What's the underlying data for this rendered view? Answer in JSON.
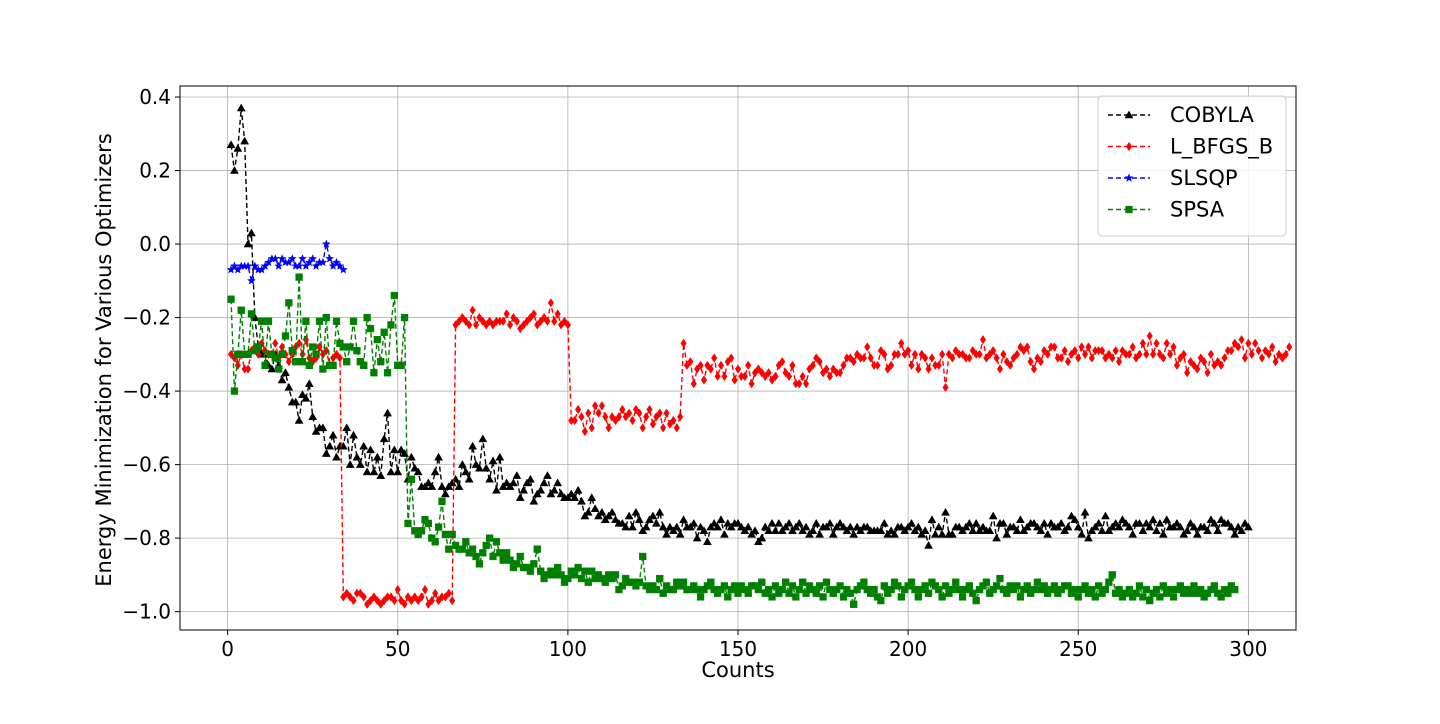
{
  "chart_data": {
    "type": "line",
    "title": "",
    "xlabel": "Counts",
    "ylabel": "Energy Minimization for Various Optimizers",
    "xlim": [
      -14,
      314
    ],
    "ylim": [
      -1.05,
      0.43
    ],
    "xticks": [
      0,
      50,
      100,
      150,
      200,
      250,
      300
    ],
    "yticks": [
      0.4,
      0.2,
      0.0,
      -0.2,
      -0.4,
      -0.6,
      -0.8,
      -1.0
    ],
    "xtick_labels": [
      "0",
      "50",
      "100",
      "150",
      "200",
      "250",
      "300"
    ],
    "ytick_labels": [
      "0.4",
      "0.2",
      "0.0",
      "−0.2",
      "−0.4",
      "−0.6",
      "−0.8",
      "−1.0"
    ],
    "grid": true,
    "legend_position": "top-right",
    "series": [
      {
        "name": "COBYLA",
        "color": "#000000",
        "marker": "triangle",
        "line_style": "dashed",
        "x_start": 1,
        "y": [
          0.27,
          0.2,
          0.26,
          0.37,
          0.28,
          0.0,
          0.03,
          -0.2,
          -0.28,
          -0.3,
          -0.3,
          -0.33,
          -0.34,
          -0.3,
          -0.33,
          -0.37,
          -0.35,
          -0.39,
          -0.43,
          -0.43,
          -0.48,
          -0.41,
          -0.42,
          -0.38,
          -0.47,
          -0.51,
          -0.5,
          -0.5,
          -0.57,
          -0.55,
          -0.52,
          -0.58,
          -0.55,
          -0.55,
          -0.5,
          -0.6,
          -0.52,
          -0.58,
          -0.6,
          -0.55,
          -0.62,
          -0.56,
          -0.62,
          -0.58,
          -0.63,
          -0.53,
          -0.46,
          -0.62,
          -0.56,
          -0.62,
          -0.56,
          -0.57,
          -0.64,
          -0.58,
          -0.61,
          -0.62,
          -0.66,
          -0.66,
          -0.65,
          -0.66,
          -0.62,
          -0.58,
          -0.66,
          -0.68,
          -0.66,
          -0.65,
          -0.64,
          -0.66,
          -0.6,
          -0.62,
          -0.64,
          -0.55,
          -0.6,
          -0.61,
          -0.53,
          -0.61,
          -0.64,
          -0.59,
          -0.67,
          -0.58,
          -0.66,
          -0.65,
          -0.66,
          -0.65,
          -0.63,
          -0.69,
          -0.67,
          -0.65,
          -0.64,
          -0.7,
          -0.68,
          -0.67,
          -0.65,
          -0.63,
          -0.68,
          -0.67,
          -0.65,
          -0.68,
          -0.69,
          -0.69,
          -0.68,
          -0.69,
          -0.67,
          -0.7,
          -0.74,
          -0.73,
          -0.69,
          -0.72,
          -0.74,
          -0.73,
          -0.75,
          -0.74,
          -0.73,
          -0.75,
          -0.76,
          -0.76,
          -0.77,
          -0.74,
          -0.77,
          -0.73,
          -0.75,
          -0.78,
          -0.77,
          -0.75,
          -0.74,
          -0.76,
          -0.73,
          -0.77,
          -0.79,
          -0.77,
          -0.78,
          -0.77,
          -0.79,
          -0.75,
          -0.77,
          -0.77,
          -0.76,
          -0.8,
          -0.77,
          -0.78,
          -0.81,
          -0.77,
          -0.76,
          -0.77,
          -0.75,
          -0.79,
          -0.76,
          -0.77,
          -0.76,
          -0.76,
          -0.77,
          -0.78,
          -0.77,
          -0.79,
          -0.78,
          -0.81,
          -0.8,
          -0.77,
          -0.78,
          -0.76,
          -0.78,
          -0.76,
          -0.78,
          -0.77,
          -0.76,
          -0.78,
          -0.77,
          -0.76,
          -0.78,
          -0.77,
          -0.79,
          -0.78,
          -0.76,
          -0.79,
          -0.77,
          -0.77,
          -0.76,
          -0.79,
          -0.77,
          -0.76,
          -0.77,
          -0.78,
          -0.77,
          -0.79,
          -0.77,
          -0.78,
          -0.77,
          -0.77,
          -0.78,
          -0.78,
          -0.78,
          -0.78,
          -0.76,
          -0.79,
          -0.78,
          -0.79,
          -0.77,
          -0.77,
          -0.78,
          -0.77,
          -0.76,
          -0.78,
          -0.77,
          -0.79,
          -0.78,
          -0.82,
          -0.75,
          -0.79,
          -0.77,
          -0.79,
          -0.73,
          -0.79,
          -0.79,
          -0.77,
          -0.77,
          -0.78,
          -0.77,
          -0.76,
          -0.78,
          -0.76,
          -0.78,
          -0.77,
          -0.78,
          -0.78,
          -0.74,
          -0.8,
          -0.76,
          -0.76,
          -0.79,
          -0.77,
          -0.77,
          -0.78,
          -0.75,
          -0.78,
          -0.77,
          -0.76,
          -0.76,
          -0.77,
          -0.78,
          -0.76,
          -0.79,
          -0.76,
          -0.77,
          -0.77,
          -0.76,
          -0.78,
          -0.77,
          -0.74,
          -0.75,
          -0.77,
          -0.79,
          -0.73,
          -0.8,
          -0.78,
          -0.77,
          -0.76,
          -0.78,
          -0.74,
          -0.78,
          -0.77,
          -0.76,
          -0.77,
          -0.75,
          -0.76,
          -0.77,
          -0.79,
          -0.76,
          -0.76,
          -0.78,
          -0.76,
          -0.77,
          -0.75,
          -0.78,
          -0.76,
          -0.79,
          -0.75,
          -0.77,
          -0.77,
          -0.76,
          -0.77,
          -0.79,
          -0.78,
          -0.76,
          -0.77,
          -0.79,
          -0.77,
          -0.77,
          -0.78,
          -0.75,
          -0.76,
          -0.78,
          -0.75,
          -0.76,
          -0.76,
          -0.77,
          -0.79,
          -0.77,
          -0.78,
          -0.76,
          -0.77
        ]
      },
      {
        "name": "L_BFGS_B",
        "color": "#ff0000",
        "marker": "diamond",
        "line_style": "dashed",
        "x_start": 1,
        "y": [
          -0.3,
          -0.31,
          -0.33,
          -0.3,
          -0.34,
          -0.34,
          -0.29,
          -0.28,
          -0.3,
          -0.27,
          -0.29,
          -0.3,
          -0.3,
          -0.27,
          -0.31,
          -0.28,
          -0.3,
          -0.32,
          -0.3,
          -0.28,
          -0.27,
          -0.3,
          -0.26,
          -0.31,
          -0.32,
          -0.31,
          -0.28,
          -0.3,
          -0.29,
          -0.33,
          -0.31,
          -0.3,
          -0.31,
          -0.96,
          -0.95,
          -0.96,
          -0.97,
          -0.95,
          -0.95,
          -0.96,
          -0.98,
          -0.97,
          -0.96,
          -0.97,
          -0.98,
          -0.97,
          -0.96,
          -0.96,
          -0.97,
          -0.94,
          -0.97,
          -0.98,
          -0.96,
          -0.97,
          -0.96,
          -0.97,
          -0.96,
          -0.94,
          -0.98,
          -0.97,
          -0.95,
          -0.97,
          -0.96,
          -0.96,
          -0.95,
          -0.97,
          -0.22,
          -0.21,
          -0.2,
          -0.21,
          -0.22,
          -0.18,
          -0.22,
          -0.2,
          -0.21,
          -0.22,
          -0.21,
          -0.22,
          -0.21,
          -0.21,
          -0.21,
          -0.19,
          -0.22,
          -0.2,
          -0.21,
          -0.23,
          -0.22,
          -0.21,
          -0.2,
          -0.19,
          -0.22,
          -0.21,
          -0.2,
          -0.21,
          -0.16,
          -0.21,
          -0.19,
          -0.22,
          -0.21,
          -0.22,
          -0.48,
          -0.48,
          -0.45,
          -0.47,
          -0.51,
          -0.46,
          -0.5,
          -0.44,
          -0.46,
          -0.44,
          -0.47,
          -0.5,
          -0.47,
          -0.48,
          -0.47,
          -0.45,
          -0.47,
          -0.46,
          -0.48,
          -0.45,
          -0.46,
          -0.5,
          -0.47,
          -0.45,
          -0.49,
          -0.47,
          -0.46,
          -0.5,
          -0.46,
          -0.49,
          -0.48,
          -0.5,
          -0.47,
          -0.27,
          -0.33,
          -0.32,
          -0.38,
          -0.34,
          -0.33,
          -0.37,
          -0.33,
          -0.34,
          -0.31,
          -0.36,
          -0.33,
          -0.36,
          -0.32,
          -0.31,
          -0.37,
          -0.34,
          -0.36,
          -0.36,
          -0.33,
          -0.38,
          -0.35,
          -0.34,
          -0.35,
          -0.36,
          -0.35,
          -0.37,
          -0.36,
          -0.33,
          -0.32,
          -0.35,
          -0.36,
          -0.33,
          -0.38,
          -0.38,
          -0.36,
          -0.38,
          -0.34,
          -0.33,
          -0.31,
          -0.32,
          -0.35,
          -0.34,
          -0.36,
          -0.34,
          -0.35,
          -0.35,
          -0.33,
          -0.31,
          -0.31,
          -0.32,
          -0.3,
          -0.31,
          -0.31,
          -0.28,
          -0.31,
          -0.33,
          -0.33,
          -0.29,
          -0.3,
          -0.34,
          -0.33,
          -0.3,
          -0.3,
          -0.27,
          -0.3,
          -0.29,
          -0.33,
          -0.3,
          -0.34,
          -0.3,
          -0.31,
          -0.34,
          -0.31,
          -0.33,
          -0.33,
          -0.3,
          -0.39,
          -0.3,
          -0.31,
          -0.29,
          -0.3,
          -0.3,
          -0.31,
          -0.31,
          -0.29,
          -0.3,
          -0.3,
          -0.26,
          -0.31,
          -0.3,
          -0.29,
          -0.31,
          -0.34,
          -0.3,
          -0.32,
          -0.33,
          -0.31,
          -0.3,
          -0.28,
          -0.29,
          -0.28,
          -0.32,
          -0.34,
          -0.31,
          -0.32,
          -0.29,
          -0.3,
          -0.28,
          -0.28,
          -0.31,
          -0.31,
          -0.29,
          -0.32,
          -0.3,
          -0.29,
          -0.31,
          -0.28,
          -0.3,
          -0.28,
          -0.31,
          -0.29,
          -0.29,
          -0.29,
          -0.31,
          -0.3,
          -0.31,
          -0.29,
          -0.32,
          -0.29,
          -0.3,
          -0.3,
          -0.28,
          -0.31,
          -0.3,
          -0.27,
          -0.3,
          -0.25,
          -0.3,
          -0.27,
          -0.3,
          -0.31,
          -0.27,
          -0.3,
          -0.28,
          -0.33,
          -0.31,
          -0.3,
          -0.35,
          -0.32,
          -0.33,
          -0.34,
          -0.31,
          -0.32,
          -0.35,
          -0.3,
          -0.33,
          -0.32,
          -0.33,
          -0.31,
          -0.29,
          -0.29,
          -0.27,
          -0.28,
          -0.26,
          -0.31,
          -0.27,
          -0.3,
          -0.27,
          -0.29,
          -0.31,
          -0.29,
          -0.3,
          -0.28,
          -0.32,
          -0.3,
          -0.31,
          -0.3,
          -0.28
        ]
      },
      {
        "name": "SLSQP",
        "color": "#0000ff",
        "marker": "star",
        "line_style": "dashed",
        "x_start": 1,
        "y": [
          -0.07,
          -0.06,
          -0.07,
          -0.06,
          -0.06,
          -0.06,
          -0.1,
          -0.06,
          -0.07,
          -0.07,
          -0.06,
          -0.05,
          -0.04,
          -0.04,
          -0.06,
          -0.04,
          -0.05,
          -0.05,
          -0.04,
          -0.06,
          -0.06,
          -0.04,
          -0.06,
          -0.05,
          -0.04,
          -0.06,
          -0.05,
          -0.05,
          -0.0,
          -0.04,
          -0.06,
          -0.05,
          -0.06,
          -0.07
        ]
      },
      {
        "name": "SPSA",
        "color": "#008000",
        "marker": "square",
        "line_style": "dashed",
        "x_start": 1,
        "y": [
          -0.15,
          -0.4,
          -0.3,
          -0.18,
          -0.3,
          -0.3,
          -0.19,
          -0.29,
          -0.28,
          -0.21,
          -0.33,
          -0.21,
          -0.3,
          -0.31,
          -0.34,
          -0.3,
          -0.25,
          -0.16,
          -0.29,
          -0.32,
          -0.09,
          -0.32,
          -0.21,
          -0.33,
          -0.28,
          -0.3,
          -0.21,
          -0.34,
          -0.2,
          -0.33,
          -0.33,
          -0.21,
          -0.27,
          -0.28,
          -0.32,
          -0.28,
          -0.21,
          -0.29,
          -0.32,
          -0.33,
          -0.2,
          -0.23,
          -0.35,
          -0.26,
          -0.32,
          -0.24,
          -0.35,
          -0.22,
          -0.14,
          -0.33,
          -0.33,
          -0.2,
          -0.76,
          -0.64,
          -0.78,
          -0.79,
          -0.78,
          -0.75,
          -0.76,
          -0.8,
          -0.81,
          -0.77,
          -0.7,
          -0.79,
          -0.83,
          -0.79,
          -0.82,
          -0.83,
          -0.83,
          -0.81,
          -0.84,
          -0.83,
          -0.85,
          -0.87,
          -0.84,
          -0.82,
          -0.8,
          -0.85,
          -0.81,
          -0.84,
          -0.86,
          -0.84,
          -0.86,
          -0.88,
          -0.87,
          -0.85,
          -0.88,
          -0.88,
          -0.89,
          -0.87,
          -0.83,
          -0.89,
          -0.91,
          -0.9,
          -0.89,
          -0.9,
          -0.88,
          -0.9,
          -0.92,
          -0.91,
          -0.89,
          -0.9,
          -0.88,
          -0.91,
          -0.89,
          -0.92,
          -0.89,
          -0.91,
          -0.9,
          -0.91,
          -0.92,
          -0.9,
          -0.91,
          -0.9,
          -0.94,
          -0.93,
          -0.91,
          -0.92,
          -0.92,
          -0.93,
          -0.92,
          -0.85,
          -0.93,
          -0.94,
          -0.93,
          -0.94,
          -0.91,
          -0.95,
          -0.93,
          -0.94,
          -0.94,
          -0.92,
          -0.93,
          -0.92,
          -0.94,
          -0.94,
          -0.93,
          -0.94,
          -0.96,
          -0.94,
          -0.93,
          -0.92,
          -0.94,
          -0.95,
          -0.94,
          -0.93,
          -0.96,
          -0.94,
          -0.93,
          -0.95,
          -0.93,
          -0.94,
          -0.95,
          -0.93,
          -0.93,
          -0.94,
          -0.92,
          -0.95,
          -0.94,
          -0.96,
          -0.93,
          -0.95,
          -0.94,
          -0.92,
          -0.95,
          -0.93,
          -0.96,
          -0.94,
          -0.92,
          -0.95,
          -0.93,
          -0.94,
          -0.95,
          -0.93,
          -0.96,
          -0.92,
          -0.94,
          -0.95,
          -0.94,
          -0.93,
          -0.96,
          -0.94,
          -0.95,
          -0.98,
          -0.94,
          -0.93,
          -0.92,
          -0.94,
          -0.95,
          -0.94,
          -0.96,
          -0.97,
          -0.93,
          -0.95,
          -0.94,
          -0.92,
          -0.93,
          -0.96,
          -0.94,
          -0.93,
          -0.92,
          -0.94,
          -0.96,
          -0.94,
          -0.93,
          -0.95,
          -0.92,
          -0.93,
          -0.94,
          -0.96,
          -0.93,
          -0.95,
          -0.94,
          -0.92,
          -0.94,
          -0.96,
          -0.94,
          -0.93,
          -0.95,
          -0.97,
          -0.94,
          -0.93,
          -0.92,
          -0.95,
          -0.94,
          -0.93,
          -0.91,
          -0.94,
          -0.95,
          -0.93,
          -0.94,
          -0.93,
          -0.96,
          -0.94,
          -0.93,
          -0.95,
          -0.94,
          -0.92,
          -0.94,
          -0.93,
          -0.95,
          -0.94,
          -0.93,
          -0.95,
          -0.94,
          -0.93,
          -0.93,
          -0.95,
          -0.94,
          -0.96,
          -0.94,
          -0.93,
          -0.95,
          -0.94,
          -0.96,
          -0.93,
          -0.95,
          -0.94,
          -0.92,
          -0.9,
          -0.95,
          -0.94,
          -0.96,
          -0.95,
          -0.94,
          -0.96,
          -0.95,
          -0.93,
          -0.96,
          -0.94,
          -0.97,
          -0.95,
          -0.94,
          -0.96,
          -0.93,
          -0.95,
          -0.94,
          -0.96,
          -0.94,
          -0.93,
          -0.95,
          -0.94,
          -0.95,
          -0.93,
          -0.95,
          -0.94,
          -0.96,
          -0.95,
          -0.94,
          -0.93,
          -0.95,
          -0.96,
          -0.94,
          -0.95,
          -0.93,
          -0.94
        ]
      }
    ]
  }
}
